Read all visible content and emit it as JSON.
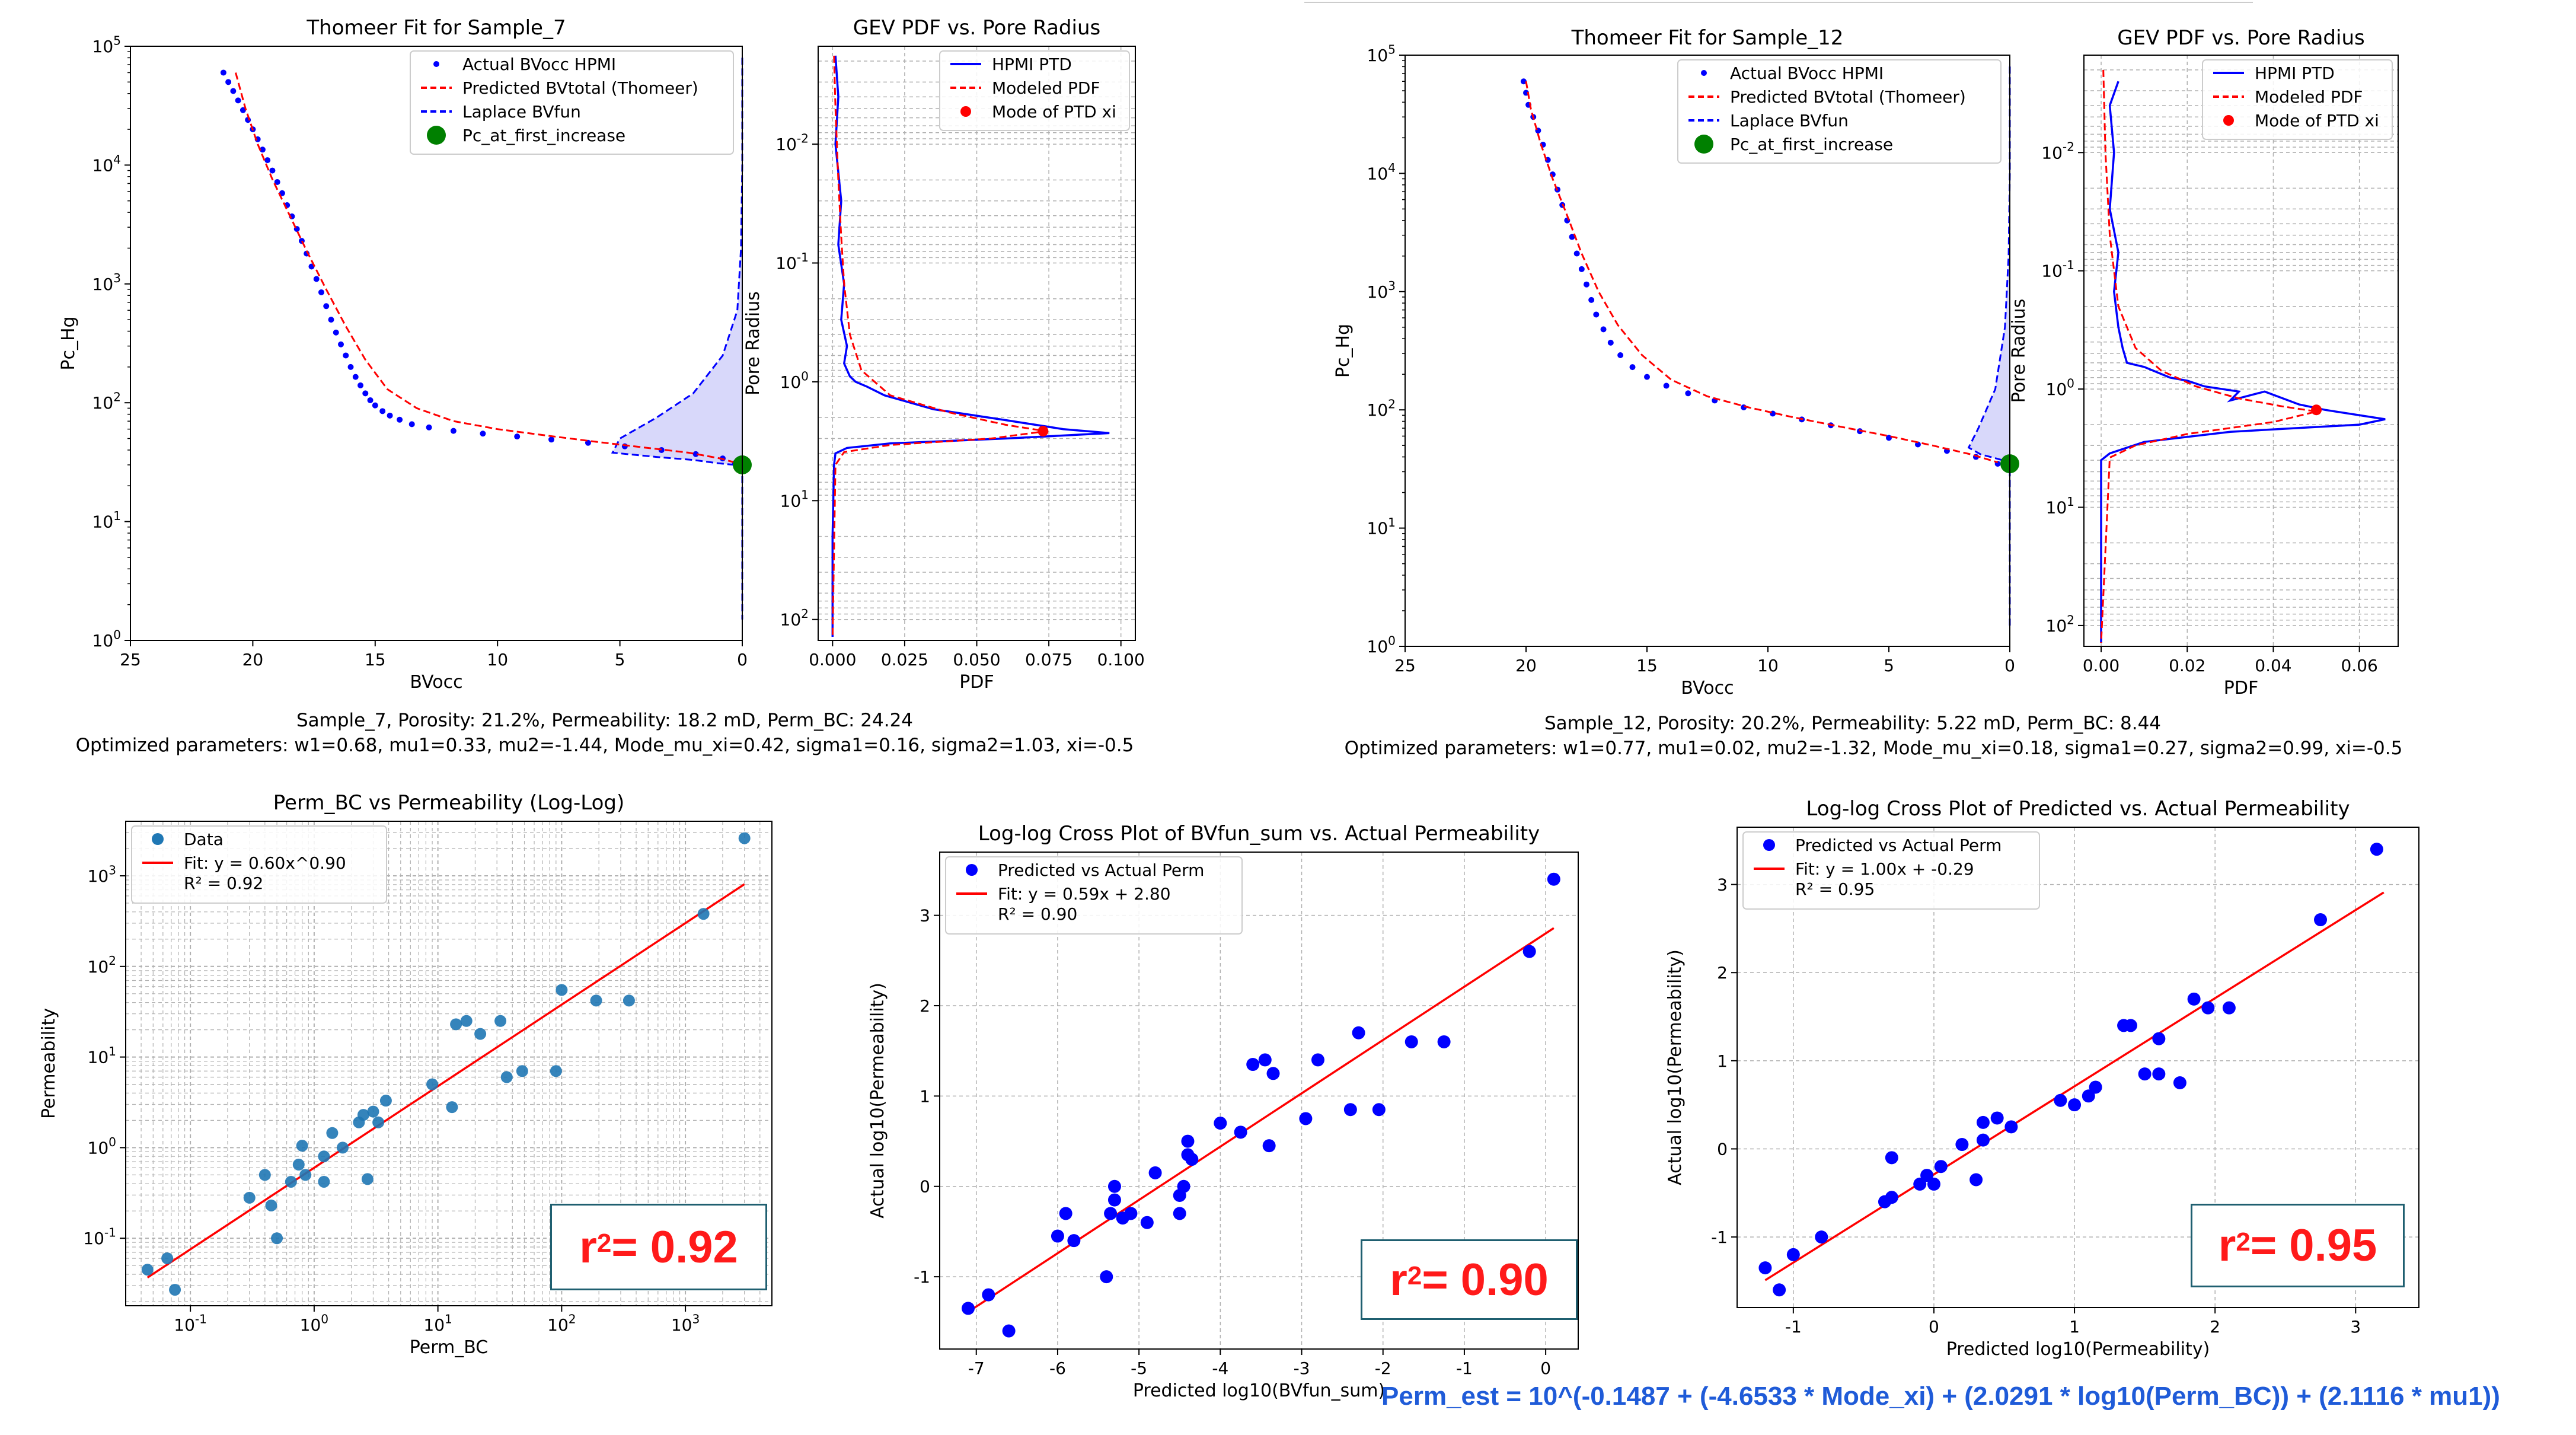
{
  "captions": {
    "left_line1": "Sample_7, Porosity: 21.2%,  Permeability: 18.2 mD,  Perm_BC: 24.24",
    "left_line2": "Optimized parameters:  w1=0.68, mu1=0.33,  mu2=-1.44,  Mode_mu_xi=0.42,  sigma1=0.16,  sigma2=1.03,  xi=-0.5",
    "right_line1": "Sample_12, Porosity: 20.2%,  Permeability: 5.22 mD,  Perm_BC: 8.44",
    "right_line2": "Optimized parameters:  w1=0.77, mu1=0.02,  mu2=-1.32,  Mode_mu_xi=0.18,  sigma1=0.27,  sigma2=0.99,  xi=-0.5"
  },
  "r2_boxes": [
    {
      "base": "r",
      "sup": "2",
      "rest": " = 0.92"
    },
    {
      "base": "r",
      "sup": "2",
      "rest": " = 0.90"
    },
    {
      "base": "r",
      "sup": "2",
      "rest": " = 0.95"
    }
  ],
  "formula": "Perm_est = 10^(-0.1487 + (-4.6533 * Mode_xi) + (2.0291 * log10(Perm_BC)) + (2.1116 * mu1))",
  "colors": {
    "blue": "#0000ff",
    "red": "#ff0000",
    "green": "#008000",
    "steel": "#1f77b4",
    "fill": "#c8c8f8"
  },
  "chart_data": [
    {
      "id": "thomeer7",
      "type": "line",
      "title": "Thomeer Fit for Sample_7",
      "xlabel": "BVocc",
      "ylabel": "Pc_Hg",
      "x_ticks": [
        "25",
        "20",
        "15",
        "10",
        "5",
        "0"
      ],
      "x_range": [
        25,
        0
      ],
      "y_scale": "log",
      "y_range": [
        1,
        100000
      ],
      "y_ticks": [
        "10^0",
        "10^1",
        "10^2",
        "10^3",
        "10^4",
        "10^5"
      ],
      "legend": [
        "Actual BVocc HPMI",
        "Predicted BVtotal (Thomeer)",
        "Laplace BVfun",
        "Pc_at_first_increase"
      ],
      "legend_position": "upper right",
      "grid": false,
      "actual_points": {
        "x": [
          21.2,
          21.0,
          20.8,
          20.6,
          20.4,
          20.2,
          20.0,
          19.8,
          19.6,
          19.4,
          19.2,
          19.0,
          18.8,
          18.6,
          18.4,
          18.2,
          18.0,
          17.8,
          17.6,
          17.4,
          17.2,
          17.0,
          16.8,
          16.6,
          16.4,
          16.2,
          16.0,
          15.8,
          15.6,
          15.4,
          15.2,
          15.0,
          14.7,
          14.4,
          14.0,
          13.5,
          12.8,
          11.8,
          10.6,
          9.2,
          7.8,
          6.3,
          4.8,
          3.3,
          1.9,
          0.8,
          0.3
        ],
        "y": [
          60000,
          50000,
          42000,
          35000,
          29000,
          24000,
          20000,
          16500,
          13500,
          11000,
          9000,
          7200,
          5800,
          4600,
          3700,
          2900,
          2300,
          1800,
          1400,
          1100,
          850,
          650,
          500,
          390,
          310,
          250,
          200,
          165,
          140,
          120,
          105,
          95,
          85,
          78,
          72,
          66,
          62,
          58,
          55,
          52,
          49,
          46,
          43,
          40,
          37,
          34,
          31
        ]
      },
      "thomeer_curve": {
        "x": [
          20.7,
          20.3,
          19.8,
          19.2,
          18.5,
          17.8,
          17.0,
          16.2,
          15.4,
          14.5,
          13.3,
          11.8,
          10.0,
          8.0,
          6.0,
          4.0,
          2.2,
          0.9,
          0.2
        ],
        "y": [
          60000,
          30000,
          15000,
          7600,
          3800,
          1900,
          900,
          440,
          230,
          130,
          90,
          70,
          60,
          53,
          47,
          42,
          38,
          34,
          31
        ]
      },
      "laplace_curve": {
        "x": [
          0.0,
          0.0,
          0.05,
          0.2,
          0.8,
          2.0,
          3.5,
          5.0,
          5.3,
          3.5,
          2.0,
          1.0,
          0.3,
          0.0,
          0.0
        ],
        "y": [
          80000,
          10000,
          2000,
          600,
          250,
          120,
          75,
          50,
          38,
          35,
          33,
          31,
          30,
          25,
          1.5
        ]
      },
      "pc_first_increase": {
        "x": 0.0,
        "y": 30
      }
    },
    {
      "id": "gev7",
      "type": "line",
      "title": "GEV PDF vs. Pore Radius",
      "xlabel": "PDF",
      "ylabel": "Pore Radius",
      "x_ticks": [
        "0.000",
        "0.025",
        "0.050",
        "0.075",
        "0.100"
      ],
      "x_range": [
        -0.005,
        0.105
      ],
      "y_scale": "log-reversed",
      "y_range": [
        0.0015,
        150
      ],
      "y_ticks": [
        "10^-2",
        "10^-1",
        "10^0",
        "10^1",
        "10^2"
      ],
      "legend": [
        "HPMI PTD",
        "Modeled PDF",
        "Mode of PTD xi"
      ],
      "legend_position": "upper right",
      "grid": true,
      "hpmi": {
        "x": [
          0.001,
          0.002,
          0.001,
          0.003,
          0.002,
          0.004,
          0.003,
          0.005,
          0.004,
          0.006,
          0.008,
          0.012,
          0.018,
          0.035,
          0.06,
          0.08,
          0.096,
          0.06,
          0.02,
          0.005,
          0.001,
          0.0005,
          0.0,
          0.0
        ],
        "y": [
          0.0018,
          0.004,
          0.01,
          0.03,
          0.07,
          0.15,
          0.3,
          0.5,
          0.7,
          0.9,
          1.0,
          1.1,
          1.3,
          1.7,
          2.1,
          2.5,
          2.7,
          3.0,
          3.3,
          3.6,
          4.0,
          5.0,
          20,
          140
        ]
      },
      "modeled": {
        "x": [
          0.0005,
          0.001,
          0.002,
          0.003,
          0.004,
          0.006,
          0.01,
          0.02,
          0.04,
          0.06,
          0.074,
          0.055,
          0.02,
          0.004,
          0.001,
          0.0
        ],
        "y": [
          0.0018,
          0.005,
          0.02,
          0.06,
          0.15,
          0.4,
          0.8,
          1.3,
          1.8,
          2.3,
          2.6,
          3.0,
          3.4,
          3.9,
          5.0,
          140
        ]
      },
      "mode": {
        "x": 0.073,
        "y": 2.6
      }
    },
    {
      "id": "thomeer12",
      "type": "line",
      "title": "Thomeer Fit for Sample_12",
      "xlabel": "BVocc",
      "ylabel": "Pc_Hg",
      "x_ticks": [
        "25",
        "20",
        "15",
        "10",
        "5",
        "0"
      ],
      "x_range": [
        25,
        0
      ],
      "y_scale": "log",
      "y_range": [
        1,
        100000
      ],
      "y_ticks": [
        "10^0",
        "10^1",
        "10^2",
        "10^3",
        "10^4",
        "10^5"
      ],
      "legend": [
        "Actual BVocc HPMI",
        "Predicted BVtotal (Thomeer)",
        "Laplace BVfun",
        "Pc_at_first_increase"
      ],
      "legend_position": "upper right",
      "grid": false,
      "actual_points": {
        "x": [
          20.1,
          20.0,
          19.9,
          19.7,
          19.5,
          19.3,
          19.1,
          18.9,
          18.7,
          18.5,
          18.3,
          18.1,
          17.9,
          17.7,
          17.5,
          17.3,
          17.1,
          16.8,
          16.5,
          16.1,
          15.6,
          15.0,
          14.2,
          13.3,
          12.2,
          11.0,
          9.8,
          8.6,
          7.4,
          6.2,
          5.0,
          3.8,
          2.6,
          1.4,
          0.5
        ],
        "y": [
          60000,
          48000,
          38000,
          30000,
          23000,
          17500,
          13000,
          9800,
          7300,
          5400,
          4000,
          2900,
          2100,
          1550,
          1150,
          850,
          640,
          480,
          370,
          290,
          230,
          190,
          160,
          138,
          120,
          105,
          93,
          83,
          74,
          66,
          58,
          51,
          45,
          40,
          35
        ]
      },
      "thomeer_curve": {
        "x": [
          20.0,
          19.8,
          19.4,
          18.9,
          18.3,
          17.7,
          17.0,
          16.2,
          15.2,
          14.0,
          12.5,
          10.8,
          9.0,
          7.0,
          5.0,
          3.2,
          1.6,
          0.5
        ],
        "y": [
          60000,
          35000,
          18000,
          9000,
          4400,
          2100,
          1000,
          520,
          290,
          180,
          130,
          105,
          87,
          72,
          60,
          50,
          42,
          36
        ]
      },
      "laplace_curve": {
        "x": [
          0.0,
          0.0,
          0.05,
          0.2,
          0.6,
          1.3,
          1.7,
          1.2,
          0.6,
          0.2,
          0.0,
          0.0
        ],
        "y": [
          80000,
          10000,
          2000,
          500,
          150,
          70,
          48,
          42,
          39,
          37,
          35,
          1.5
        ]
      },
      "pc_first_increase": {
        "x": 0.0,
        "y": 35
      }
    },
    {
      "id": "gev12",
      "type": "line",
      "title": "GEV PDF vs. Pore Radius",
      "xlabel": "PDF",
      "ylabel": "Pore Radius",
      "x_ticks": [
        "0.00",
        "0.02",
        "0.04",
        "0.06"
      ],
      "x_range": [
        -0.004,
        0.069
      ],
      "y_scale": "log-reversed",
      "y_range": [
        0.0015,
        150
      ],
      "y_ticks": [
        "10^-2",
        "10^-1",
        "10^0",
        "10^1",
        "10^2"
      ],
      "legend": [
        "HPMI PTD",
        "Modeled PDF",
        "Mode of PTD xi"
      ],
      "legend_position": "upper right",
      "grid": true,
      "hpmi": {
        "x": [
          0.004,
          0.002,
          0.003,
          0.002,
          0.004,
          0.003,
          0.004,
          0.005,
          0.006,
          0.01,
          0.016,
          0.02,
          0.024,
          0.032,
          0.03,
          0.038,
          0.046,
          0.052,
          0.066,
          0.06,
          0.03,
          0.01,
          0.002,
          0.0,
          0.0
        ],
        "y": [
          0.0025,
          0.004,
          0.01,
          0.03,
          0.07,
          0.15,
          0.3,
          0.45,
          0.6,
          0.65,
          0.8,
          0.85,
          0.95,
          1.05,
          1.25,
          1.05,
          1.35,
          1.5,
          1.8,
          2.0,
          2.3,
          2.8,
          3.5,
          4.0,
          140
        ]
      },
      "modeled": {
        "x": [
          0.0005,
          0.001,
          0.002,
          0.004,
          0.008,
          0.014,
          0.022,
          0.032,
          0.042,
          0.05,
          0.04,
          0.02,
          0.008,
          0.002,
          0.0
        ],
        "y": [
          0.002,
          0.01,
          0.05,
          0.2,
          0.45,
          0.7,
          0.95,
          1.2,
          1.4,
          1.55,
          1.9,
          2.4,
          3.0,
          3.8,
          140
        ]
      },
      "mode": {
        "x": 0.05,
        "y": 1.5
      }
    },
    {
      "id": "perm_bc",
      "type": "scatter",
      "title": "Perm_BC vs Permeability (Log-Log)",
      "xlabel": "Perm_BC",
      "ylabel": "Permeability",
      "x_scale": "log",
      "x_range": [
        0.03,
        5000
      ],
      "x_ticks": [
        "10^-1",
        "10^0",
        "10^1",
        "10^2",
        "10^3"
      ],
      "y_scale": "log",
      "y_range": [
        0.018,
        4000
      ],
      "y_ticks": [
        "10^-1",
        "10^0",
        "10^1",
        "10^2",
        "10^3"
      ],
      "legend": [
        "Data",
        "Fit: y = 0.60x^0.90\nR² = 0.92"
      ],
      "legend_position": "upper left",
      "grid": true,
      "fit": {
        "a": 0.6,
        "b": 0.9,
        "x_from": 0.045,
        "x_to": 3000
      },
      "points": [
        [
          0.045,
          0.045
        ],
        [
          0.065,
          0.06
        ],
        [
          0.075,
          0.027
        ],
        [
          0.3,
          0.28
        ],
        [
          0.4,
          0.5
        ],
        [
          0.45,
          0.23
        ],
        [
          0.5,
          0.1
        ],
        [
          0.65,
          0.42
        ],
        [
          0.75,
          0.65
        ],
        [
          0.8,
          1.05
        ],
        [
          0.85,
          0.5
        ],
        [
          1.2,
          0.8
        ],
        [
          1.2,
          0.42
        ],
        [
          1.4,
          1.45
        ],
        [
          1.7,
          1.0
        ],
        [
          2.3,
          1.9
        ],
        [
          2.5,
          2.3
        ],
        [
          2.7,
          0.45
        ],
        [
          3.0,
          2.5
        ],
        [
          3.3,
          1.9
        ],
        [
          3.8,
          3.3
        ],
        [
          9.0,
          5.0
        ],
        [
          13.0,
          2.8
        ],
        [
          14.0,
          23.0
        ],
        [
          17.0,
          25.0
        ],
        [
          22.0,
          18.0
        ],
        [
          32.0,
          25.0
        ],
        [
          36.0,
          6.0
        ],
        [
          48.0,
          7.0
        ],
        [
          90.0,
          7.0
        ],
        [
          100.0,
          55.0
        ],
        [
          190.0,
          42.0
        ],
        [
          350.0,
          42.0
        ],
        [
          1400.0,
          380.0
        ],
        [
          3000.0,
          2600.0
        ]
      ]
    },
    {
      "id": "bvfun",
      "type": "scatter",
      "title": "Log-log Cross Plot of BVfun_sum vs. Actual Permeability",
      "xlabel": "Predicted log10(BVfun_sum)",
      "ylabel": "Actual log10(Permeability)",
      "x_range": [
        -7.45,
        0.4
      ],
      "x_ticks": [
        "-7",
        "-6",
        "-5",
        "-4",
        "-3",
        "-2",
        "-1",
        "0"
      ],
      "y_range": [
        -1.8,
        3.7
      ],
      "y_ticks": [
        "-1",
        "0",
        "1",
        "2",
        "3"
      ],
      "legend": [
        "Predicted vs Actual Perm",
        "Fit: y = 0.59x + 2.80\nR² = 0.90"
      ],
      "legend_position": "upper left",
      "grid": true,
      "fit": {
        "m": 0.59,
        "c": 2.8,
        "x_from": -7.1,
        "x_to": 0.1
      },
      "points": [
        [
          -7.1,
          -1.35
        ],
        [
          -6.85,
          -1.2
        ],
        [
          -6.6,
          -1.6
        ],
        [
          -6.0,
          -0.55
        ],
        [
          -5.9,
          -0.3
        ],
        [
          -5.8,
          -0.6
        ],
        [
          -5.4,
          -1.0
        ],
        [
          -5.35,
          -0.3
        ],
        [
          -5.3,
          -0.15
        ],
        [
          -5.3,
          0.0
        ],
        [
          -5.2,
          -0.35
        ],
        [
          -5.1,
          -0.3
        ],
        [
          -4.9,
          -0.4
        ],
        [
          -4.8,
          0.15
        ],
        [
          -4.5,
          -0.3
        ],
        [
          -4.5,
          -0.1
        ],
        [
          -4.45,
          0.0
        ],
        [
          -4.4,
          0.35
        ],
        [
          -4.4,
          0.5
        ],
        [
          -4.35,
          0.3
        ],
        [
          -4.0,
          0.7
        ],
        [
          -3.75,
          0.6
        ],
        [
          -3.6,
          1.35
        ],
        [
          -3.45,
          1.4
        ],
        [
          -3.4,
          0.45
        ],
        [
          -3.35,
          1.25
        ],
        [
          -2.95,
          0.75
        ],
        [
          -2.8,
          1.4
        ],
        [
          -2.4,
          0.85
        ],
        [
          -2.3,
          1.7
        ],
        [
          -2.05,
          0.85
        ],
        [
          -1.65,
          1.6
        ],
        [
          -1.25,
          1.6
        ],
        [
          -0.2,
          2.6
        ],
        [
          0.1,
          3.4
        ]
      ]
    },
    {
      "id": "predicted",
      "type": "scatter",
      "title": "Log-log Cross Plot of Predicted vs. Actual Permeability",
      "xlabel": "Predicted log10(Permeability)",
      "ylabel": "Actual log10(Permeability)",
      "x_range": [
        -1.4,
        3.45
      ],
      "x_ticks": [
        "-1",
        "0",
        "1",
        "2",
        "3"
      ],
      "y_range": [
        -1.8,
        3.65
      ],
      "y_ticks": [
        "-1",
        "0",
        "1",
        "2",
        "3"
      ],
      "legend": [
        "Predicted vs Actual Perm",
        "Fit: y = 1.00x + -0.29\nR² = 0.95"
      ],
      "legend_position": "upper left",
      "grid": true,
      "fit": {
        "m": 1.0,
        "c": -0.29,
        "x_from": -1.2,
        "x_to": 3.2
      },
      "points": [
        [
          -1.2,
          -1.35
        ],
        [
          -1.1,
          -1.6
        ],
        [
          -1.0,
          -1.2
        ],
        [
          -0.8,
          -1.0
        ],
        [
          -0.35,
          -0.6
        ],
        [
          -0.3,
          -0.55
        ],
        [
          -0.3,
          -0.1
        ],
        [
          -0.1,
          -0.4
        ],
        [
          -0.05,
          -0.3
        ],
        [
          0.0,
          -0.4
        ],
        [
          0.05,
          -0.2
        ],
        [
          0.2,
          0.05
        ],
        [
          0.3,
          -0.35
        ],
        [
          0.35,
          0.1
        ],
        [
          0.35,
          0.3
        ],
        [
          0.45,
          0.35
        ],
        [
          0.55,
          0.25
        ],
        [
          0.9,
          0.55
        ],
        [
          1.0,
          0.5
        ],
        [
          1.1,
          0.6
        ],
        [
          1.15,
          0.7
        ],
        [
          1.35,
          1.4
        ],
        [
          1.4,
          1.4
        ],
        [
          1.5,
          0.85
        ],
        [
          1.6,
          0.85
        ],
        [
          1.6,
          1.25
        ],
        [
          1.75,
          0.75
        ],
        [
          1.85,
          1.7
        ],
        [
          1.95,
          1.6
        ],
        [
          2.1,
          1.6
        ],
        [
          2.75,
          2.6
        ],
        [
          3.15,
          3.4
        ]
      ]
    }
  ]
}
